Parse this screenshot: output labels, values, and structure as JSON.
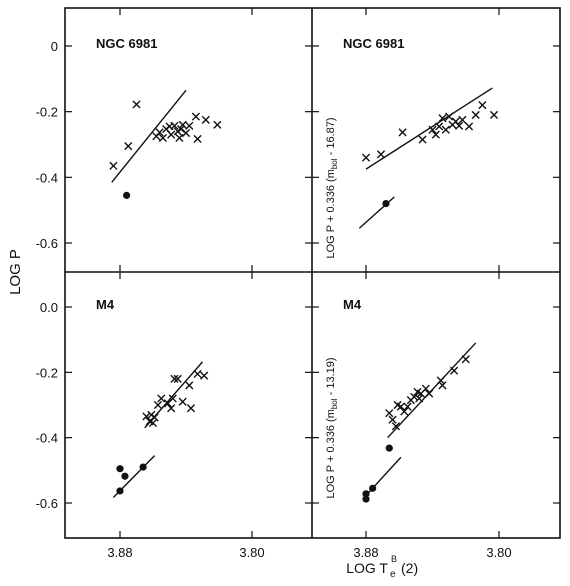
{
  "figure": {
    "y_axis_label": "LOG P",
    "x_axis_label_main": "LOG T",
    "x_axis_label_sub": "e",
    "x_axis_label_sup": "B",
    "x_axis_label_suffix": "(2)"
  },
  "chart_data": [
    {
      "type": "scatter",
      "title": "NGC 6981",
      "ylabel": "",
      "xlabel": "",
      "xlim": [
        3.91,
        3.77
      ],
      "ylim": [
        -0.7,
        0.05
      ],
      "x_ticks": [
        "3.88",
        "3.80"
      ],
      "y_ticks": [
        "0",
        "-0.2",
        "-0.4",
        "-0.6"
      ],
      "y_tick_values": [
        0,
        -0.2,
        -0.4,
        -0.6
      ],
      "grid": false,
      "series": [
        {
          "marker": "x",
          "points": [
            [
              3.884,
              -0.365
            ],
            [
              3.875,
              -0.305
            ],
            [
              3.87,
              -0.178
            ],
            [
              3.858,
              -0.275
            ],
            [
              3.856,
              -0.263
            ],
            [
              3.854,
              -0.28
            ],
            [
              3.852,
              -0.253
            ],
            [
              3.85,
              -0.245
            ],
            [
              3.849,
              -0.27
            ],
            [
              3.847,
              -0.243
            ],
            [
              3.845,
              -0.26
            ],
            [
              3.844,
              -0.28
            ],
            [
              3.843,
              -0.253
            ],
            [
              3.842,
              -0.24
            ],
            [
              3.84,
              -0.265
            ],
            [
              3.838,
              -0.243
            ],
            [
              3.834,
              -0.215
            ],
            [
              3.833,
              -0.283
            ],
            [
              3.828,
              -0.225
            ],
            [
              3.821,
              -0.24
            ]
          ]
        },
        {
          "marker": "dot",
          "points": [
            [
              3.876,
              -0.455
            ]
          ]
        },
        {
          "marker": "line",
          "points": [
            [
              3.885,
              -0.415
            ],
            [
              3.84,
              -0.135
            ]
          ]
        }
      ]
    },
    {
      "type": "scatter",
      "title": "NGC 6981",
      "ylabel": "LOG P + 0.336 (m",
      "ylabel_sub": "bol",
      "ylabel_suffix": " - 16.87)",
      "xlabel": "",
      "xlim": [
        3.91,
        3.77
      ],
      "ylim": [
        -0.7,
        0.05
      ],
      "x_ticks": [
        "3.88",
        "3.80"
      ],
      "grid": false,
      "series": [
        {
          "marker": "x",
          "points": [
            [
              3.88,
              -0.34
            ],
            [
              3.871,
              -0.33
            ],
            [
              3.858,
              -0.263
            ],
            [
              3.846,
              -0.285
            ],
            [
              3.84,
              -0.255
            ],
            [
              3.838,
              -0.27
            ],
            [
              3.836,
              -0.245
            ],
            [
              3.834,
              -0.22
            ],
            [
              3.832,
              -0.255
            ],
            [
              3.83,
              -0.215
            ],
            [
              3.828,
              -0.24
            ],
            [
              3.826,
              -0.23
            ],
            [
              3.824,
              -0.243
            ],
            [
              3.822,
              -0.225
            ],
            [
              3.818,
              -0.245
            ],
            [
              3.814,
              -0.21
            ],
            [
              3.81,
              -0.18
            ],
            [
              3.803,
              -0.21
            ]
          ]
        },
        {
          "marker": "dot",
          "points": [
            [
              3.868,
              -0.48
            ]
          ]
        },
        {
          "marker": "line",
          "points": [
            [
              3.88,
              -0.375
            ],
            [
              3.804,
              -0.128
            ]
          ]
        },
        {
          "marker": "line",
          "points": [
            [
              3.884,
              -0.555
            ],
            [
              3.863,
              -0.46
            ]
          ]
        }
      ]
    },
    {
      "type": "scatter",
      "title": "M4",
      "ylabel": "",
      "xlabel": "",
      "xlim": [
        3.91,
        3.77
      ],
      "ylim": [
        -0.67,
        0.08
      ],
      "x_ticks": [
        "3.88",
        "3.80"
      ],
      "y_ticks": [
        "0.0",
        "-0.2",
        "-0.4",
        "-0.6"
      ],
      "y_tick_values": [
        0,
        -0.2,
        -0.4,
        -0.6
      ],
      "grid": false,
      "series": [
        {
          "marker": "x",
          "points": [
            [
              3.864,
              -0.335
            ],
            [
              3.862,
              -0.35
            ],
            [
              3.861,
              -0.33
            ],
            [
              3.86,
              -0.355
            ],
            [
              3.859,
              -0.338
            ],
            [
              3.857,
              -0.3
            ],
            [
              3.855,
              -0.28
            ],
            [
              3.851,
              -0.295
            ],
            [
              3.849,
              -0.31
            ],
            [
              3.848,
              -0.28
            ],
            [
              3.847,
              -0.22
            ],
            [
              3.845,
              -0.22
            ],
            [
              3.842,
              -0.29
            ],
            [
              3.838,
              -0.24
            ],
            [
              3.837,
              -0.31
            ],
            [
              3.833,
              -0.205
            ],
            [
              3.829,
              -0.21
            ]
          ]
        },
        {
          "marker": "dot",
          "points": [
            [
              3.88,
              -0.495
            ],
            [
              3.877,
              -0.518
            ],
            [
              3.88,
              -0.563
            ],
            [
              3.866,
              -0.49
            ]
          ]
        },
        {
          "marker": "line",
          "points": [
            [
              3.865,
              -0.37
            ],
            [
              3.83,
              -0.168
            ]
          ]
        },
        {
          "marker": "line",
          "points": [
            [
              3.884,
              -0.583
            ],
            [
              3.859,
              -0.455
            ]
          ]
        }
      ]
    },
    {
      "type": "scatter",
      "title": "M4",
      "ylabel": "LOG P + 0.336 (m",
      "ylabel_sub": "bol",
      "ylabel_suffix": " - 13.19)",
      "xlabel": "",
      "xlim": [
        3.91,
        3.77
      ],
      "ylim": [
        -0.67,
        0.08
      ],
      "x_ticks": [
        "3.88",
        "3.80"
      ],
      "grid": false,
      "series": [
        {
          "marker": "x",
          "points": [
            [
              3.866,
              -0.325
            ],
            [
              3.864,
              -0.345
            ],
            [
              3.862,
              -0.365
            ],
            [
              3.861,
              -0.3
            ],
            [
              3.859,
              -0.305
            ],
            [
              3.857,
              -0.32
            ],
            [
              3.855,
              -0.305
            ],
            [
              3.853,
              -0.285
            ],
            [
              3.851,
              -0.275
            ],
            [
              3.849,
              -0.26
            ],
            [
              3.848,
              -0.28
            ],
            [
              3.847,
              -0.265
            ],
            [
              3.844,
              -0.25
            ],
            [
              3.842,
              -0.265
            ],
            [
              3.835,
              -0.225
            ],
            [
              3.834,
              -0.24
            ],
            [
              3.827,
              -0.195
            ],
            [
              3.82,
              -0.16
            ]
          ]
        },
        {
          "marker": "dot",
          "points": [
            [
              3.88,
              -0.572
            ],
            [
              3.88,
              -0.588
            ],
            [
              3.876,
              -0.555
            ],
            [
              3.866,
              -0.432
            ]
          ]
        },
        {
          "marker": "line",
          "points": [
            [
              3.867,
              -0.4
            ],
            [
              3.814,
              -0.11
            ]
          ]
        },
        {
          "marker": "line",
          "points": [
            [
              3.88,
              -0.577
            ],
            [
              3.859,
              -0.46
            ]
          ]
        }
      ]
    }
  ]
}
